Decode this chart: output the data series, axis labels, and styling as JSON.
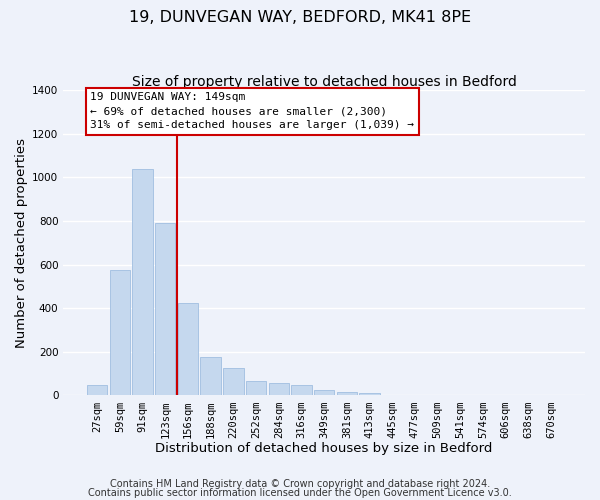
{
  "title": "19, DUNVEGAN WAY, BEDFORD, MK41 8PE",
  "subtitle": "Size of property relative to detached houses in Bedford",
  "xlabel": "Distribution of detached houses by size in Bedford",
  "ylabel": "Number of detached properties",
  "categories": [
    "27sqm",
    "59sqm",
    "91sqm",
    "123sqm",
    "156sqm",
    "188sqm",
    "220sqm",
    "252sqm",
    "284sqm",
    "316sqm",
    "349sqm",
    "381sqm",
    "413sqm",
    "445sqm",
    "477sqm",
    "509sqm",
    "541sqm",
    "574sqm",
    "606sqm",
    "638sqm",
    "670sqm"
  ],
  "values": [
    50,
    575,
    1040,
    790,
    425,
    178,
    125,
    65,
    55,
    50,
    23,
    18,
    10,
    4,
    2,
    0,
    0,
    0,
    0,
    0,
    0
  ],
  "bar_color": "#c5d8ee",
  "bar_edge_color": "#a0bee0",
  "vline_color": "#cc0000",
  "box_text_line1": "19 DUNVEGAN WAY: 149sqm",
  "box_text_line2": "← 69% of detached houses are smaller (2,300)",
  "box_text_line3": "31% of semi-detached houses are larger (1,039) →",
  "box_facecolor": "white",
  "box_edgecolor": "#cc0000",
  "ylim": [
    0,
    1400
  ],
  "yticks": [
    0,
    200,
    400,
    600,
    800,
    1000,
    1200,
    1400
  ],
  "footnote1": "Contains HM Land Registry data © Crown copyright and database right 2024.",
  "footnote2": "Contains public sector information licensed under the Open Government Licence v3.0.",
  "background_color": "#eef2fa",
  "grid_color": "#ffffff",
  "title_fontsize": 11.5,
  "subtitle_fontsize": 10,
  "axis_label_fontsize": 9.5,
  "tick_fontsize": 7.5,
  "footnote_fontsize": 7
}
